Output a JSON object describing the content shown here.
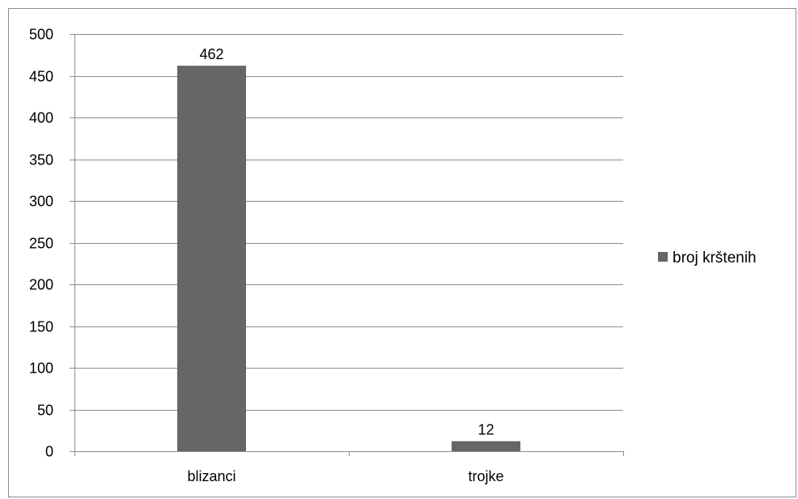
{
  "chart_data": {
    "type": "bar",
    "categories": [
      "blizanci",
      "trojke"
    ],
    "series": [
      {
        "name": "broj krštenih",
        "values": [
          462,
          12
        ],
        "color": "#666666"
      }
    ],
    "data_labels": [
      "462",
      "12"
    ],
    "ylim": [
      0,
      500
    ],
    "y_ticks": [
      0,
      50,
      100,
      150,
      200,
      250,
      300,
      350,
      400,
      450,
      500
    ],
    "grid": true,
    "legend_position": "right",
    "title": "",
    "xlabel": "",
    "ylabel": ""
  }
}
